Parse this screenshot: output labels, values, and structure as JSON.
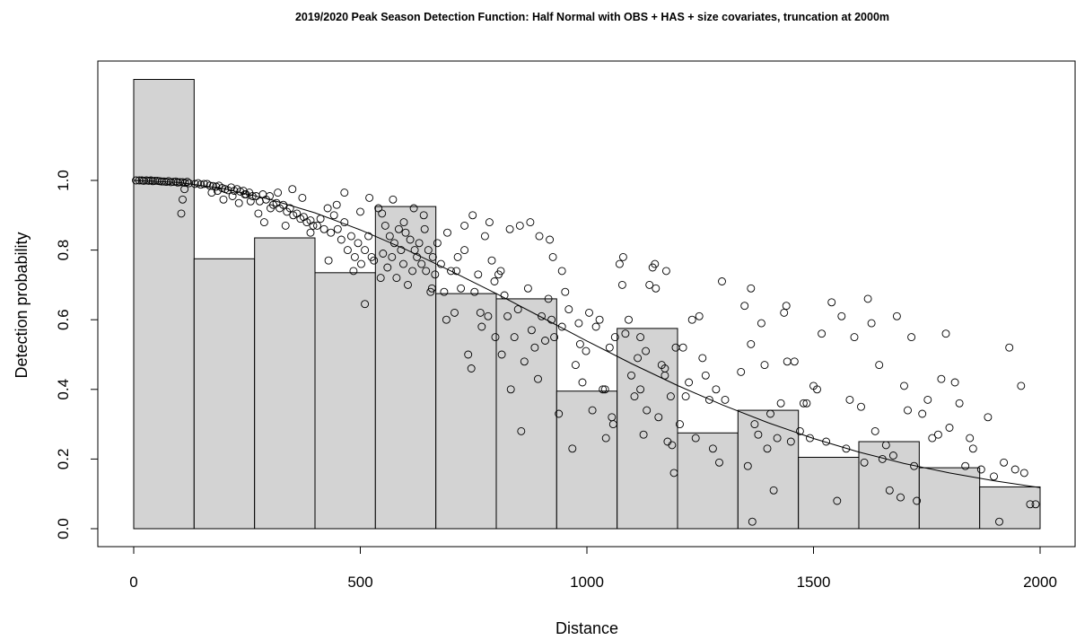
{
  "chart_data": {
    "type": "histogram",
    "title": "2019/2020 Peak Season Detection Function: Half Normal with OBS + HAS + size covariates, truncation at 2000m",
    "xlabel": "Distance",
    "ylabel": "Detection probability",
    "xlim": [
      0,
      2000
    ],
    "ylim": [
      0,
      1.2
    ],
    "x_ticks": [
      0,
      500,
      1000,
      1500,
      2000
    ],
    "y_ticks": [
      0.0,
      0.2,
      0.4,
      0.6,
      0.8,
      1.0
    ],
    "x_tick_labels": [
      "0",
      "500",
      "1000",
      "1500",
      "2000"
    ],
    "y_tick_labels": [
      "0.0",
      "0.2",
      "0.4",
      "0.6",
      "0.8",
      "1.0"
    ],
    "bar_color": "#d3d3d3",
    "bins": [
      {
        "x0": 0,
        "x1": 133.3,
        "value": 1.29
      },
      {
        "x0": 133.3,
        "x1": 266.7,
        "value": 0.775
      },
      {
        "x0": 266.7,
        "x1": 400,
        "value": 0.835
      },
      {
        "x0": 400,
        "x1": 533.3,
        "value": 0.735
      },
      {
        "x0": 533.3,
        "x1": 666.7,
        "value": 0.925
      },
      {
        "x0": 666.7,
        "x1": 800,
        "value": 0.675
      },
      {
        "x0": 800,
        "x1": 933.3,
        "value": 0.66
      },
      {
        "x0": 933.3,
        "x1": 1066.7,
        "value": 0.395
      },
      {
        "x0": 1066.7,
        "x1": 1200,
        "value": 0.575
      },
      {
        "x0": 1200,
        "x1": 1333.3,
        "value": 0.275
      },
      {
        "x0": 1333.3,
        "x1": 1466.7,
        "value": 0.34
      },
      {
        "x0": 1466.7,
        "x1": 1600,
        "value": 0.205
      },
      {
        "x0": 1600,
        "x1": 1733.3,
        "value": 0.25
      },
      {
        "x0": 1733.3,
        "x1": 1866.7,
        "value": 0.175
      },
      {
        "x0": 1866.7,
        "x1": 2000,
        "value": 0.12
      }
    ],
    "curve": {
      "name": "Half Normal fit",
      "x": [
        0,
        100,
        200,
        300,
        400,
        500,
        600,
        700,
        800,
        900,
        1000,
        1100,
        1200,
        1300,
        1400,
        1500,
        1600,
        1700,
        1800,
        1900,
        2000
      ],
      "y": [
        1.0,
        0.994,
        0.976,
        0.946,
        0.907,
        0.858,
        0.802,
        0.74,
        0.675,
        0.607,
        0.539,
        0.473,
        0.411,
        0.355,
        0.304,
        0.259,
        0.22,
        0.187,
        0.16,
        0.137,
        0.118
      ]
    },
    "points": [
      [
        5,
        1.0
      ],
      [
        12,
        1.0
      ],
      [
        18,
        1.0
      ],
      [
        22,
        0.999
      ],
      [
        28,
        1.0
      ],
      [
        33,
        0.999
      ],
      [
        38,
        1.0
      ],
      [
        42,
        0.998
      ],
      [
        47,
        0.999
      ],
      [
        52,
        0.999
      ],
      [
        57,
        0.998
      ],
      [
        62,
        0.997
      ],
      [
        67,
        0.997
      ],
      [
        72,
        0.996
      ],
      [
        77,
        0.998
      ],
      [
        82,
        0.995
      ],
      [
        88,
        0.996
      ],
      [
        93,
        0.997
      ],
      [
        97,
        0.994
      ],
      [
        102,
        0.995
      ],
      [
        108,
        0.995
      ],
      [
        113,
        0.993
      ],
      [
        118,
        0.996
      ],
      [
        122,
        0.992
      ],
      [
        105,
        0.905
      ],
      [
        108,
        0.945
      ],
      [
        112,
        0.975
      ],
      [
        135,
        0.99
      ],
      [
        142,
        0.992
      ],
      [
        148,
        0.988
      ],
      [
        155,
        0.99
      ],
      [
        162,
        0.99
      ],
      [
        168,
        0.985
      ],
      [
        175,
        0.984
      ],
      [
        182,
        0.982
      ],
      [
        188,
        0.985
      ],
      [
        195,
        0.978
      ],
      [
        202,
        0.975
      ],
      [
        208,
        0.972
      ],
      [
        215,
        0.98
      ],
      [
        222,
        0.97
      ],
      [
        228,
        0.975
      ],
      [
        235,
        0.968
      ],
      [
        242,
        0.97
      ],
      [
        248,
        0.96
      ],
      [
        255,
        0.965
      ],
      [
        262,
        0.955
      ],
      [
        172,
        0.965
      ],
      [
        185,
        0.97
      ],
      [
        198,
        0.945
      ],
      [
        218,
        0.955
      ],
      [
        232,
        0.935
      ],
      [
        245,
        0.96
      ],
      [
        258,
        0.94
      ],
      [
        270,
        0.955
      ],
      [
        278,
        0.94
      ],
      [
        285,
        0.96
      ],
      [
        292,
        0.945
      ],
      [
        300,
        0.955
      ],
      [
        308,
        0.93
      ],
      [
        315,
        0.935
      ],
      [
        322,
        0.92
      ],
      [
        330,
        0.93
      ],
      [
        338,
        0.91
      ],
      [
        345,
        0.92
      ],
      [
        352,
        0.9
      ],
      [
        360,
        0.905
      ],
      [
        368,
        0.89
      ],
      [
        375,
        0.895
      ],
      [
        382,
        0.88
      ],
      [
        390,
        0.885
      ],
      [
        396,
        0.87
      ],
      [
        275,
        0.905
      ],
      [
        288,
        0.88
      ],
      [
        302,
        0.92
      ],
      [
        318,
        0.965
      ],
      [
        335,
        0.87
      ],
      [
        350,
        0.975
      ],
      [
        372,
        0.95
      ],
      [
        390,
        0.85
      ],
      [
        405,
        0.87
      ],
      [
        412,
        0.89
      ],
      [
        420,
        0.86
      ],
      [
        428,
        0.92
      ],
      [
        435,
        0.85
      ],
      [
        442,
        0.9
      ],
      [
        450,
        0.86
      ],
      [
        458,
        0.83
      ],
      [
        465,
        0.88
      ],
      [
        472,
        0.8
      ],
      [
        480,
        0.84
      ],
      [
        488,
        0.78
      ],
      [
        495,
        0.82
      ],
      [
        502,
        0.76
      ],
      [
        510,
        0.8
      ],
      [
        518,
        0.84
      ],
      [
        525,
        0.78
      ],
      [
        430,
        0.77
      ],
      [
        448,
        0.93
      ],
      [
        465,
        0.965
      ],
      [
        485,
        0.74
      ],
      [
        500,
        0.91
      ],
      [
        520,
        0.95
      ],
      [
        510,
        0.645
      ],
      [
        530,
        0.77
      ],
      [
        540,
        0.92
      ],
      [
        545,
        0.72
      ],
      [
        550,
        0.79
      ],
      [
        555,
        0.87
      ],
      [
        560,
        0.75
      ],
      [
        565,
        0.84
      ],
      [
        570,
        0.78
      ],
      [
        575,
        0.82
      ],
      [
        580,
        0.72
      ],
      [
        585,
        0.86
      ],
      [
        590,
        0.8
      ],
      [
        595,
        0.76
      ],
      [
        600,
        0.85
      ],
      [
        605,
        0.7
      ],
      [
        610,
        0.83
      ],
      [
        615,
        0.74
      ],
      [
        620,
        0.8
      ],
      [
        625,
        0.78
      ],
      [
        630,
        0.82
      ],
      [
        635,
        0.76
      ],
      [
        640,
        0.9
      ],
      [
        645,
        0.74
      ],
      [
        650,
        0.8
      ],
      [
        655,
        0.68
      ],
      [
        660,
        0.78
      ],
      [
        665,
        0.73
      ],
      [
        548,
        0.905
      ],
      [
        572,
        0.945
      ],
      [
        596,
        0.88
      ],
      [
        618,
        0.92
      ],
      [
        642,
        0.86
      ],
      [
        658,
        0.69
      ],
      [
        670,
        0.82
      ],
      [
        678,
        0.76
      ],
      [
        685,
        0.68
      ],
      [
        692,
        0.85
      ],
      [
        700,
        0.74
      ],
      [
        708,
        0.62
      ],
      [
        715,
        0.78
      ],
      [
        722,
        0.69
      ],
      [
        730,
        0.8
      ],
      [
        738,
        0.5
      ],
      [
        745,
        0.46
      ],
      [
        752,
        0.68
      ],
      [
        760,
        0.73
      ],
      [
        768,
        0.58
      ],
      [
        775,
        0.84
      ],
      [
        782,
        0.61
      ],
      [
        790,
        0.77
      ],
      [
        796,
        0.71
      ],
      [
        690,
        0.6
      ],
      [
        712,
        0.74
      ],
      [
        730,
        0.87
      ],
      [
        748,
        0.9
      ],
      [
        765,
        0.62
      ],
      [
        785,
        0.88
      ],
      [
        798,
        0.55
      ],
      [
        805,
        0.73
      ],
      [
        812,
        0.5
      ],
      [
        818,
        0.67
      ],
      [
        825,
        0.61
      ],
      [
        832,
        0.4
      ],
      [
        840,
        0.55
      ],
      [
        848,
        0.63
      ],
      [
        855,
        0.28
      ],
      [
        862,
        0.48
      ],
      [
        870,
        0.69
      ],
      [
        878,
        0.57
      ],
      [
        885,
        0.52
      ],
      [
        892,
        0.43
      ],
      [
        900,
        0.61
      ],
      [
        908,
        0.54
      ],
      [
        915,
        0.66
      ],
      [
        922,
        0.6
      ],
      [
        928,
        0.55
      ],
      [
        810,
        0.74
      ],
      [
        830,
        0.86
      ],
      [
        852,
        0.87
      ],
      [
        875,
        0.88
      ],
      [
        895,
        0.84
      ],
      [
        918,
        0.83
      ],
      [
        925,
        0.78
      ],
      [
        938,
        0.33
      ],
      [
        945,
        0.74
      ],
      [
        952,
        0.68
      ],
      [
        960,
        0.63
      ],
      [
        968,
        0.23
      ],
      [
        975,
        0.47
      ],
      [
        982,
        0.59
      ],
      [
        990,
        0.42
      ],
      [
        998,
        0.51
      ],
      [
        1005,
        0.62
      ],
      [
        1012,
        0.34
      ],
      [
        1020,
        0.58
      ],
      [
        1028,
        0.6
      ],
      [
        1035,
        0.4
      ],
      [
        1042,
        0.26
      ],
      [
        1050,
        0.52
      ],
      [
        1058,
        0.3
      ],
      [
        1062,
        0.55
      ],
      [
        945,
        0.58
      ],
      [
        985,
        0.53
      ],
      [
        1040,
        0.4
      ],
      [
        1055,
        0.32
      ],
      [
        1072,
        0.76
      ],
      [
        1078,
        0.7
      ],
      [
        1085,
        0.56
      ],
      [
        1092,
        0.6
      ],
      [
        1098,
        0.44
      ],
      [
        1105,
        0.38
      ],
      [
        1112,
        0.49
      ],
      [
        1118,
        0.55
      ],
      [
        1125,
        0.27
      ],
      [
        1132,
        0.34
      ],
      [
        1138,
        0.7
      ],
      [
        1145,
        0.75
      ],
      [
        1152,
        0.69
      ],
      [
        1158,
        0.32
      ],
      [
        1165,
        0.47
      ],
      [
        1172,
        0.44
      ],
      [
        1178,
        0.25
      ],
      [
        1185,
        0.38
      ],
      [
        1192,
        0.16
      ],
      [
        1196,
        0.52
      ],
      [
        1080,
        0.78
      ],
      [
        1118,
        0.4
      ],
      [
        1130,
        0.51
      ],
      [
        1150,
        0.76
      ],
      [
        1175,
        0.74
      ],
      [
        1188,
        0.24
      ],
      [
        1172,
        0.46
      ],
      [
        1205,
        0.3
      ],
      [
        1212,
        0.52
      ],
      [
        1218,
        0.38
      ],
      [
        1225,
        0.42
      ],
      [
        1232,
        0.6
      ],
      [
        1240,
        0.26
      ],
      [
        1248,
        0.61
      ],
      [
        1255,
        0.49
      ],
      [
        1262,
        0.44
      ],
      [
        1270,
        0.37
      ],
      [
        1278,
        0.23
      ],
      [
        1285,
        0.4
      ],
      [
        1292,
        0.19
      ],
      [
        1298,
        0.71
      ],
      [
        1305,
        0.37
      ],
      [
        1340,
        0.45
      ],
      [
        1348,
        0.64
      ],
      [
        1355,
        0.18
      ],
      [
        1362,
        0.53
      ],
      [
        1370,
        0.3
      ],
      [
        1378,
        0.27
      ],
      [
        1385,
        0.59
      ],
      [
        1392,
        0.47
      ],
      [
        1398,
        0.23
      ],
      [
        1405,
        0.33
      ],
      [
        1412,
        0.11
      ],
      [
        1420,
        0.26
      ],
      [
        1428,
        0.36
      ],
      [
        1435,
        0.62
      ],
      [
        1442,
        0.48
      ],
      [
        1450,
        0.25
      ],
      [
        1458,
        0.48
      ],
      [
        1362,
        0.69
      ],
      [
        1365,
        0.02
      ],
      [
        1440,
        0.64
      ],
      [
        1470,
        0.28
      ],
      [
        1478,
        0.36
      ],
      [
        1485,
        0.36
      ],
      [
        1492,
        0.26
      ],
      [
        1500,
        0.41
      ],
      [
        1508,
        0.4
      ],
      [
        1518,
        0.56
      ],
      [
        1528,
        0.25
      ],
      [
        1540,
        0.65
      ],
      [
        1552,
        0.08
      ],
      [
        1562,
        0.61
      ],
      [
        1572,
        0.23
      ],
      [
        1580,
        0.37
      ],
      [
        1590,
        0.55
      ],
      [
        1605,
        0.35
      ],
      [
        1612,
        0.19
      ],
      [
        1620,
        0.66
      ],
      [
        1628,
        0.59
      ],
      [
        1636,
        0.28
      ],
      [
        1645,
        0.47
      ],
      [
        1652,
        0.2
      ],
      [
        1660,
        0.24
      ],
      [
        1668,
        0.11
      ],
      [
        1676,
        0.21
      ],
      [
        1684,
        0.61
      ],
      [
        1692,
        0.09
      ],
      [
        1700,
        0.41
      ],
      [
        1708,
        0.34
      ],
      [
        1716,
        0.55
      ],
      [
        1722,
        0.18
      ],
      [
        1728,
        0.08
      ],
      [
        1740,
        0.33
      ],
      [
        1752,
        0.37
      ],
      [
        1762,
        0.26
      ],
      [
        1775,
        0.27
      ],
      [
        1782,
        0.43
      ],
      [
        1792,
        0.56
      ],
      [
        1800,
        0.29
      ],
      [
        1812,
        0.42
      ],
      [
        1822,
        0.36
      ],
      [
        1835,
        0.18
      ],
      [
        1845,
        0.26
      ],
      [
        1852,
        0.23
      ],
      [
        1870,
        0.17
      ],
      [
        1885,
        0.32
      ],
      [
        1898,
        0.15
      ],
      [
        1910,
        0.02
      ],
      [
        1920,
        0.19
      ],
      [
        1932,
        0.52
      ],
      [
        1945,
        0.17
      ],
      [
        1958,
        0.41
      ],
      [
        1965,
        0.16
      ],
      [
        1978,
        0.07
      ],
      [
        1990,
        0.07
      ]
    ]
  }
}
